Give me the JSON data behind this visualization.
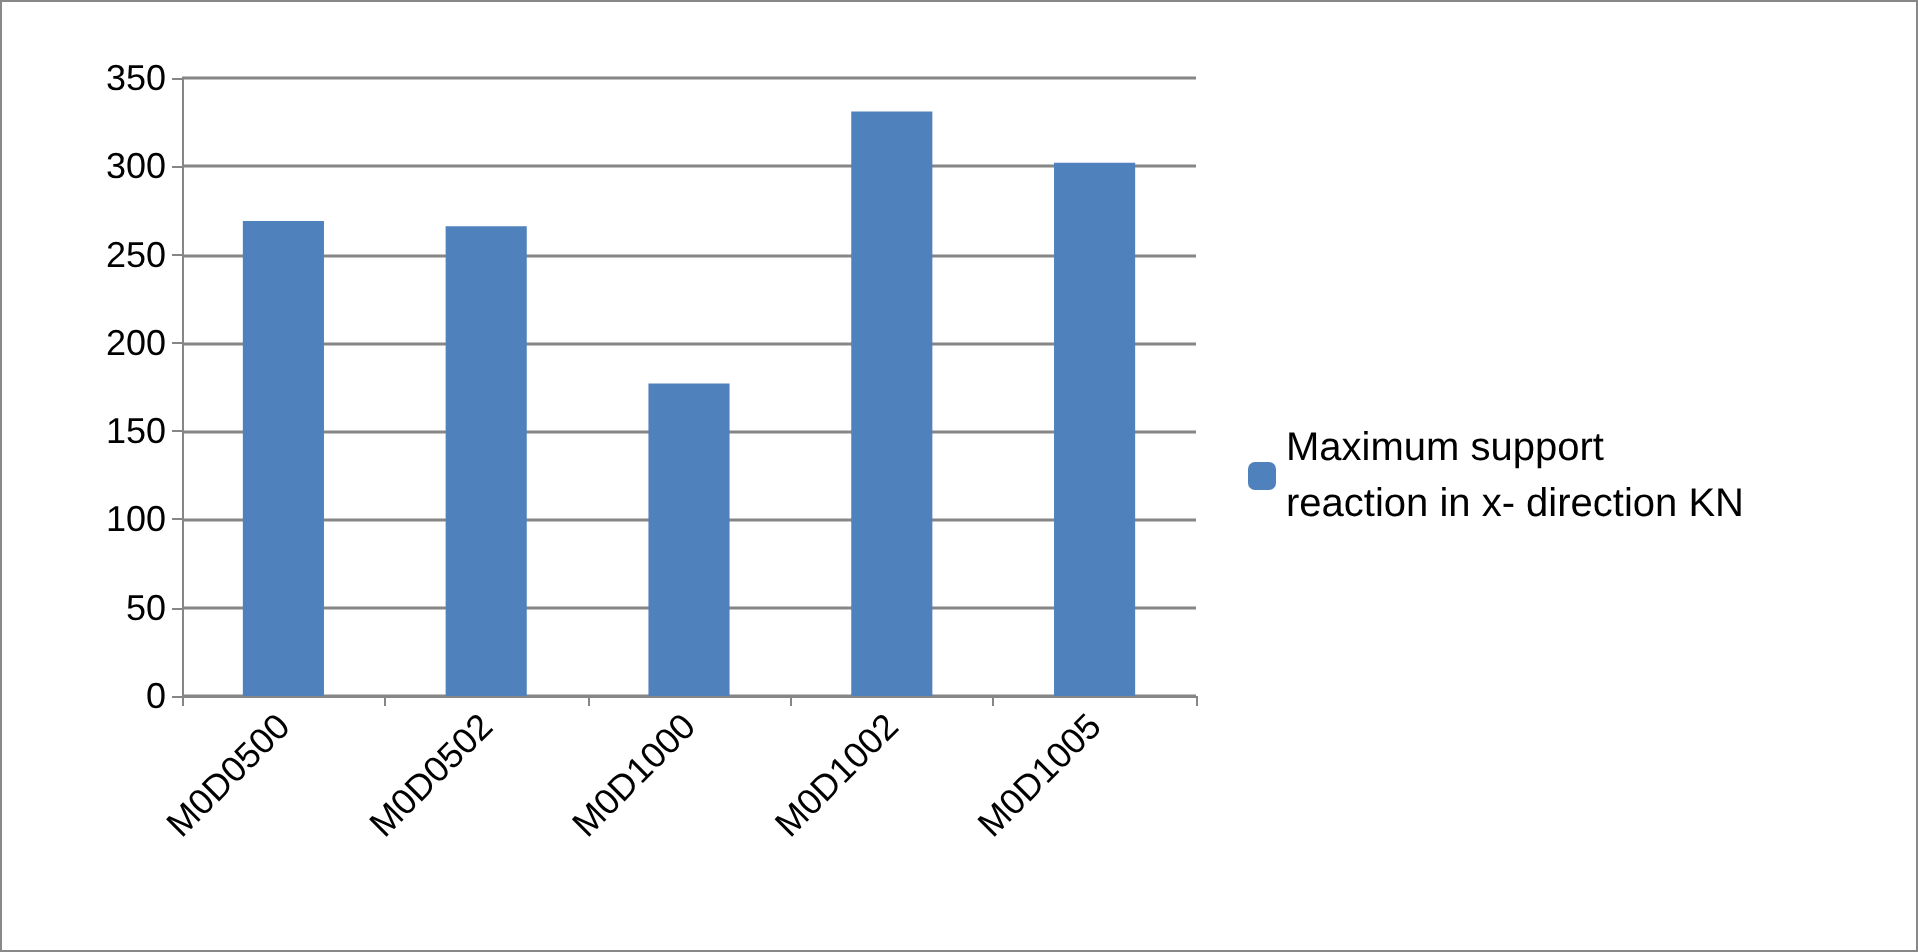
{
  "chart_data": {
    "type": "bar",
    "categories": [
      "M0D0500",
      "M0D0502",
      "M0D1000",
      "M0D1002",
      "M0D1005"
    ],
    "series": [
      {
        "name": "Maximum support reaction in x- direction KN",
        "color": "#4f81bd",
        "values": [
          269,
          266,
          177,
          331,
          302
        ]
      }
    ],
    "ylim": [
      0,
      350
    ],
    "yticks": [
      0,
      50,
      100,
      150,
      200,
      250,
      300,
      350
    ],
    "grid": "y",
    "legend": "right"
  }
}
